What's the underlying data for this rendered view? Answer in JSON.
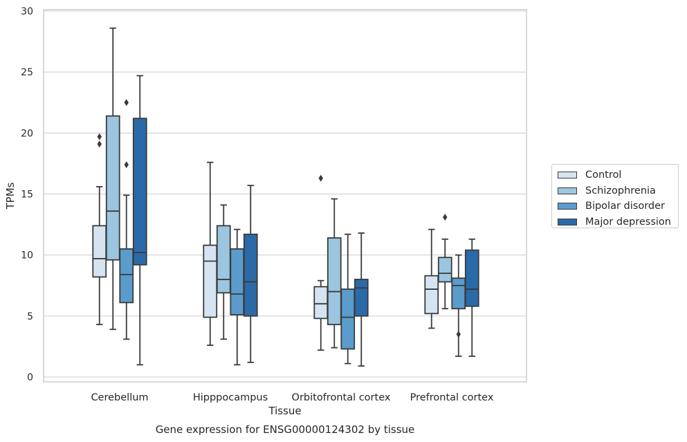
{
  "chart_data": {
    "type": "box",
    "title": "Gene expression for ENSG00000124302 by tissue",
    "xlabel": "Tissue",
    "ylabel": "TPMs",
    "ylim": [
      -0.5,
      30
    ],
    "yticks": [
      0,
      5,
      10,
      15,
      20,
      25,
      30
    ],
    "grid": "horizontal",
    "legend_position": "right-center",
    "categories": [
      "Cerebellum",
      "Hipppocampus",
      "Orbitofrontal cortex",
      "Prefrontal cortex"
    ],
    "series": [
      {
        "name": "Control",
        "color": "#d6e4f2",
        "boxes": [
          {
            "whisker_low": 4.3,
            "q1": 8.2,
            "median": 9.7,
            "q3": 12.4,
            "whisker_high": 15.6,
            "outliers": [
              19.1,
              19.7
            ]
          },
          {
            "whisker_low": 2.6,
            "q1": 4.9,
            "median": 9.5,
            "q3": 10.8,
            "whisker_high": 17.6,
            "outliers": []
          },
          {
            "whisker_low": 2.2,
            "q1": 4.8,
            "median": 6.0,
            "q3": 7.4,
            "whisker_high": 7.9,
            "outliers": [
              16.3
            ]
          },
          {
            "whisker_low": 4.0,
            "q1": 5.2,
            "median": 7.2,
            "q3": 8.3,
            "whisker_high": 12.1,
            "outliers": []
          }
        ]
      },
      {
        "name": "Schizophrenia",
        "color": "#9cc6df",
        "boxes": [
          {
            "whisker_low": 3.9,
            "q1": 9.6,
            "median": 13.6,
            "q3": 21.4,
            "whisker_high": 28.6,
            "outliers": []
          },
          {
            "whisker_low": 3.1,
            "q1": 6.9,
            "median": 8.0,
            "q3": 12.4,
            "whisker_high": 14.1,
            "outliers": []
          },
          {
            "whisker_low": 2.4,
            "q1": 4.3,
            "median": 7.0,
            "q3": 11.4,
            "whisker_high": 14.6,
            "outliers": []
          },
          {
            "whisker_low": 5.6,
            "q1": 7.8,
            "median": 8.5,
            "q3": 9.8,
            "whisker_high": 11.3,
            "outliers": [
              13.1
            ]
          }
        ]
      },
      {
        "name": "Bipolar disorder",
        "color": "#5a9ccc",
        "boxes": [
          {
            "whisker_low": 3.1,
            "q1": 6.1,
            "median": 8.4,
            "q3": 10.5,
            "whisker_high": 14.9,
            "outliers": [
              17.4,
              22.5
            ]
          },
          {
            "whisker_low": 1.0,
            "q1": 5.1,
            "median": 6.8,
            "q3": 10.5,
            "whisker_high": 12.1,
            "outliers": []
          },
          {
            "whisker_low": 1.1,
            "q1": 2.3,
            "median": 4.9,
            "q3": 7.2,
            "whisker_high": 11.7,
            "outliers": []
          },
          {
            "whisker_low": 1.7,
            "q1": 5.6,
            "median": 7.5,
            "q3": 8.1,
            "whisker_high": 10.0,
            "outliers": [
              3.5
            ]
          }
        ]
      },
      {
        "name": "Major depression",
        "color": "#2b6aa8",
        "boxes": [
          {
            "whisker_low": 1.0,
            "q1": 9.2,
            "median": 10.2,
            "q3": 21.2,
            "whisker_high": 24.7,
            "outliers": []
          },
          {
            "whisker_low": 1.2,
            "q1": 5.0,
            "median": 7.8,
            "q3": 11.7,
            "whisker_high": 15.7,
            "outliers": []
          },
          {
            "whisker_low": 0.9,
            "q1": 5.0,
            "median": 7.3,
            "q3": 8.0,
            "whisker_high": 11.8,
            "outliers": []
          },
          {
            "whisker_low": 1.7,
            "q1": 5.8,
            "median": 7.2,
            "q3": 10.4,
            "whisker_high": 11.3,
            "outliers": []
          }
        ]
      }
    ]
  }
}
